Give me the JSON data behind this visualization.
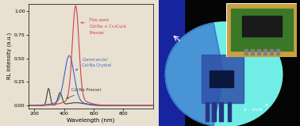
{
  "bg_color": "#e8e0d0",
  "plot_bg": "#e8e0d0",
  "xlim": [
    160,
    1000
  ],
  "ylim": [
    -0.03,
    1.08
  ],
  "xticks": [
    200,
    400,
    600,
    800
  ],
  "yticks": [
    0.0,
    0.25,
    0.5,
    0.75,
    1.0
  ],
  "xlabel": "Wavelength (nm)",
  "ylabel": "RL Intensity (a.u.)",
  "this_work_color": "#d04050",
  "commercial_color": "#4060c8",
  "presser_color": "#404040",
  "right_bg": "#050505",
  "circle_fill": "#70eee5",
  "blue_glow": "#2030c8",
  "transistor_body": "#3050a8",
  "transistor_dark": "#0a1840",
  "inset_bg": "#c8a040",
  "inset_pcb": "#3a7828",
  "inset_component": "#1a1a1a",
  "inset_pins": "#808080",
  "white": "#ffffff",
  "label_2inch": "2 - inch"
}
